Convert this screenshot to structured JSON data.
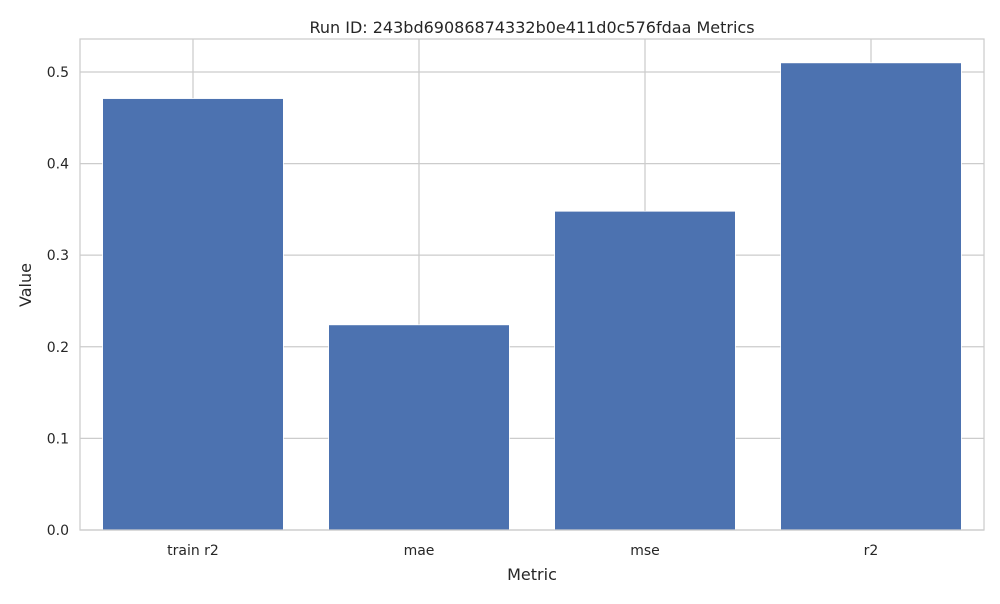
{
  "chart_data": {
    "type": "bar",
    "title": "Run ID: 243bd69086874332b0e411d0c576fdaa Metrics",
    "xlabel": "Metric",
    "ylabel": "Value",
    "categories": [
      "train r2",
      "mae",
      "mse",
      "r2"
    ],
    "values": [
      0.471,
      0.224,
      0.348,
      0.51
    ],
    "ylim": [
      0,
      0.536
    ],
    "yticks": [
      "0.0",
      "0.1",
      "0.2",
      "0.3",
      "0.4",
      "0.5"
    ],
    "grid": true,
    "legend": "none",
    "bar_color": "#4c72b0",
    "grid_color": "#cccccc",
    "background": "#ffffff"
  }
}
